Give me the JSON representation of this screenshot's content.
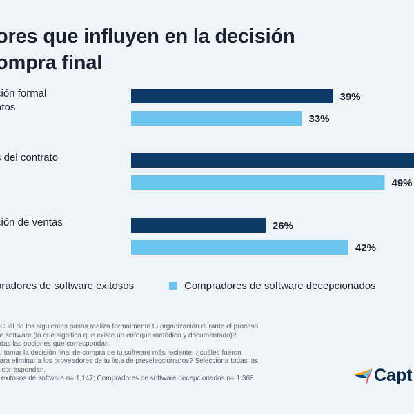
{
  "title_line1": "ores que influyen en la decisión",
  "title_line2": "ompra final",
  "chart_data": {
    "type": "bar",
    "orientation": "horizontal",
    "categories": [
      "ción formal\natos",
      "s del contrato",
      "ción de ventas"
    ],
    "series": [
      {
        "name": "pradores de software exitosos",
        "color": "#0e3a66",
        "values": [
          39,
          null,
          26
        ],
        "value_labels": [
          "39%",
          "",
          "26%"
        ]
      },
      {
        "name": "Compradores de software decepcionados",
        "color": "#6bc4ee",
        "values": [
          33,
          49,
          42
        ],
        "value_labels": [
          "33%",
          "49%",
          "42%"
        ]
      }
    ],
    "value_unit": "%",
    "grid": false,
    "legend_position": "bottom"
  },
  "footnote": {
    "line1": "¿Cuál de los siguientes pasos realiza formalmente tu organización durante el proceso",
    "line2": "de software (lo que significa que existe un enfoque metódico y documentado)?",
    "line3": "odas las opciones que correspondan.",
    "line4": "Al tomar la decisión final de compra de tu software más reciente, ¿cuáles fueron",
    "line5": "para eliminar a los proveedores de tu lista de preseleccionados? Selecciona todas las",
    "line6": "e correspondan.",
    "line7": "s exitosos de software n= 1,147; Compradores de software decepcionados n= 1,368"
  },
  "logo": {
    "text": "Capt"
  }
}
